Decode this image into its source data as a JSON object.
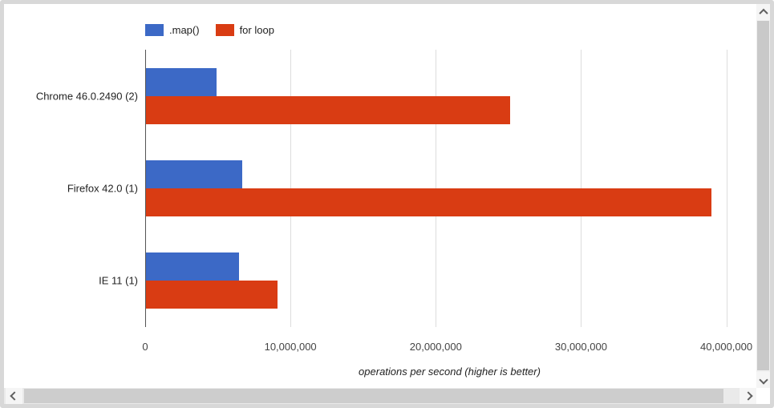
{
  "chart_data": {
    "type": "bar",
    "orientation": "horizontal",
    "categories": [
      "Chrome 46.0.2490 (2)",
      "Firefox 42.0 (1)",
      "IE 11 (1)"
    ],
    "series": [
      {
        "name": ".map()",
        "color": "#3C69C6",
        "values": [
          4900000,
          6700000,
          6450000
        ]
      },
      {
        "name": "for loop",
        "color": "#D93C13",
        "values": [
          25100000,
          39000000,
          9100000
        ]
      }
    ],
    "xlabel": "operations per second (higher is better)",
    "x_ticks": [
      {
        "value": 0,
        "label": "0"
      },
      {
        "value": 10000000,
        "label": "10,000,000"
      },
      {
        "value": 20000000,
        "label": "20,000,000"
      },
      {
        "value": 30000000,
        "label": "30,000,000"
      },
      {
        "value": 40000000,
        "label": "40,000,000"
      }
    ],
    "xlim": [
      0,
      41900000
    ],
    "grid": true,
    "legend_position": "top"
  },
  "colors": {
    "grid": "#DDDDDD",
    "baseline": "#555555",
    "tick_label": "#444444",
    "category_label": "#222222",
    "window_border": "#D8D8D8",
    "scrollbar_thumb": "#C9C9C9",
    "scrollbar_button": "#F5F5F5"
  },
  "icons": {
    "scrollbar_buttons": [
      "chevron-up-icon",
      "chevron-down-icon",
      "chevron-left-icon",
      "chevron-right-icon"
    ]
  }
}
